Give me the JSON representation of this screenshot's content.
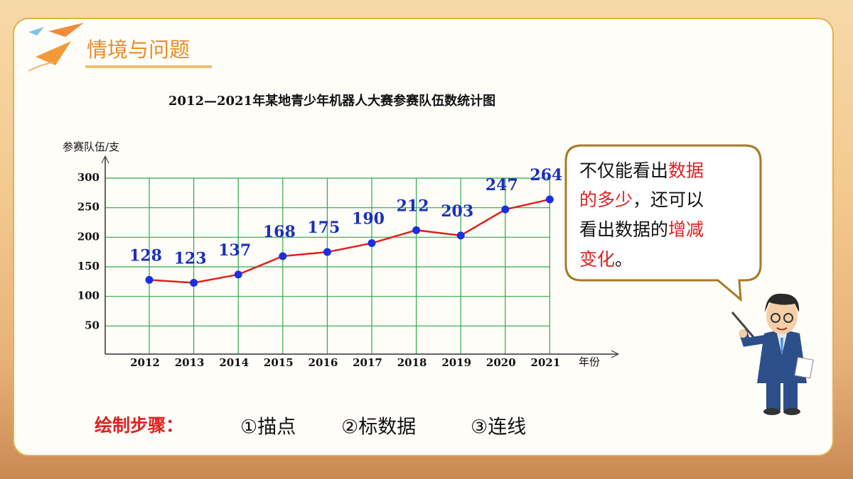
{
  "header": {
    "title": "情境与问题"
  },
  "chart_data": {
    "type": "line",
    "title": "2012—2021年某地青少年机器人大赛参赛队伍数统计图",
    "y_label": "参赛队伍/支",
    "x_label": "年份",
    "categories": [
      "2012",
      "2013",
      "2014",
      "2015",
      "2016",
      "2017",
      "2018",
      "2019",
      "2020",
      "2021"
    ],
    "values": [
      128,
      123,
      137,
      168,
      175,
      190,
      212,
      203,
      247,
      264
    ],
    "line_color": "#e0201c",
    "marker_color": "#1a2fe0",
    "label_color": "#1a2fb8",
    "grid_color": "#2ea84a",
    "ylim": [
      0,
      300
    ],
    "yticks": [
      50,
      100,
      150,
      200,
      250,
      300
    ],
    "grid": true
  },
  "bubble": {
    "lines": [
      [
        "不仅能看出",
        "数据"
      ],
      [
        "的多少",
        "，还可以"
      ],
      [
        "看出数据的",
        "增减"
      ],
      [
        "变化",
        "。"
      ]
    ]
  },
  "steps": {
    "label": "绘制步骤：",
    "items": [
      "①描点",
      "②标数据",
      "③连线"
    ]
  }
}
